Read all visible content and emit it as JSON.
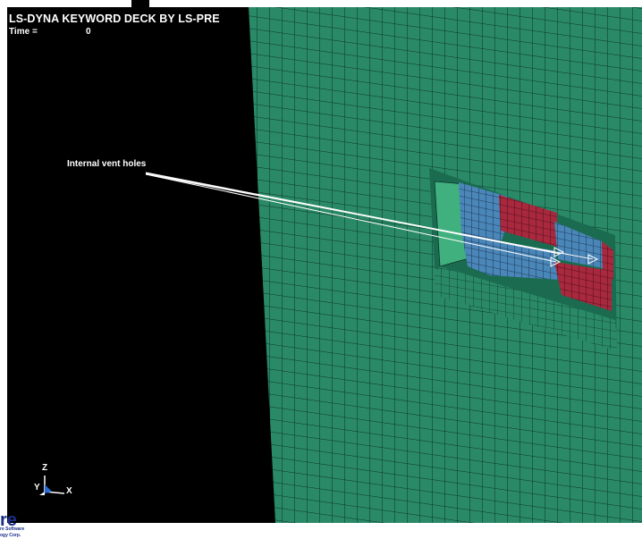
{
  "header": {
    "title": "LS-DYNA KEYWORD DECK BY LS-PRE",
    "time_label": "Time =",
    "time_value": "0"
  },
  "annotation": {
    "label": "Internal vent holes"
  },
  "triad": {
    "z_label": "Z",
    "y_label": "Y",
    "x_label": "X"
  },
  "logo": {
    "mark": "re",
    "line1": "re Software",
    "line2": "ogy Corp."
  },
  "colors": {
    "background": "#000000",
    "mesh_green": "#2a8a68",
    "mesh_line": "#0b3426",
    "airbag_blue": "#4a86b8",
    "airbag_red": "#a8283e",
    "annotation": "#ffffff"
  }
}
